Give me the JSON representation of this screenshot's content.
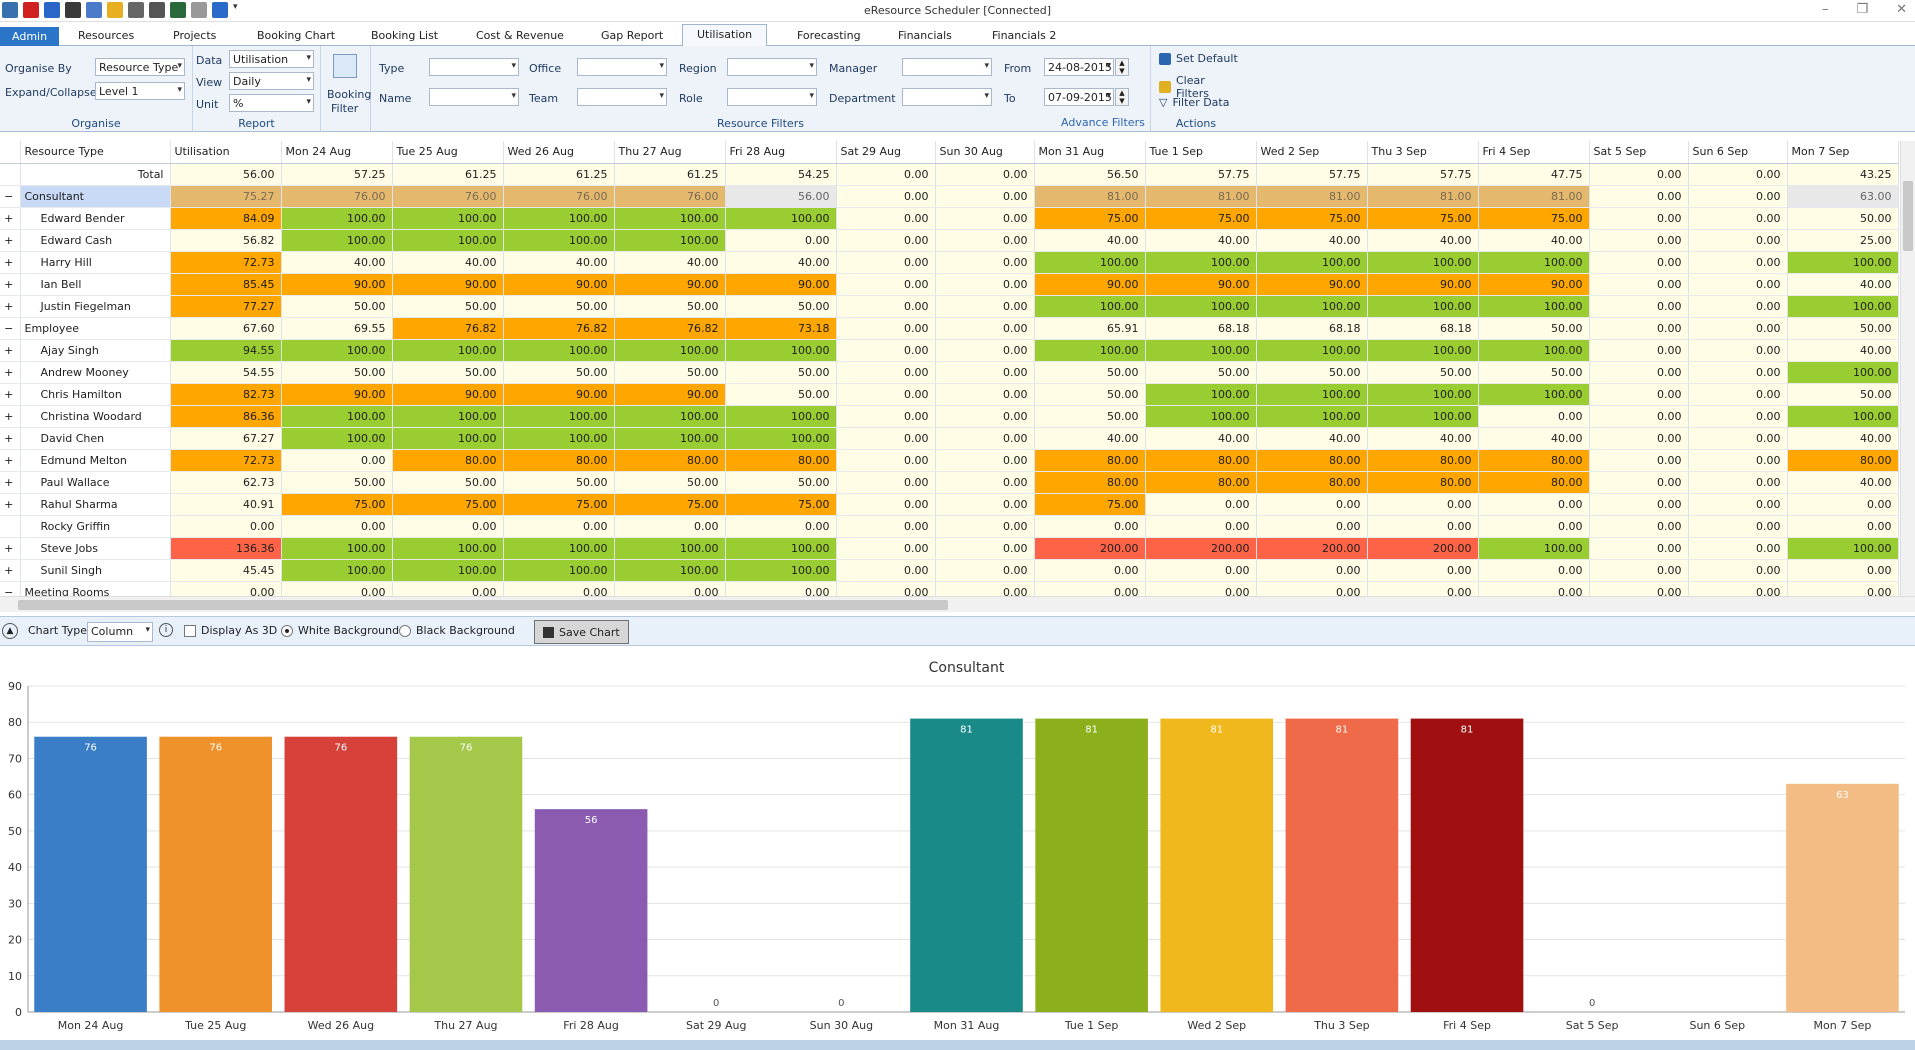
{
  "window": {
    "title": "eResource Scheduler [Connected]"
  },
  "tabs": [
    {
      "label": "Admin"
    },
    {
      "label": "Resources"
    },
    {
      "label": "Projects"
    },
    {
      "label": "Booking Chart"
    },
    {
      "label": "Booking List"
    },
    {
      "label": "Cost & Revenue"
    },
    {
      "label": "Gap Report"
    },
    {
      "label": "Utilisation"
    },
    {
      "label": "Forecasting"
    },
    {
      "label": "Financials"
    },
    {
      "label": "Financials 2"
    }
  ],
  "ribbon": {
    "organise": {
      "label": "Organise",
      "organise_by_label": "Organise By",
      "organise_by_value": "Resource Type",
      "expand_label": "Expand/Collapse",
      "expand_value": "Level 1"
    },
    "report": {
      "label": "Report",
      "data_label": "Data",
      "data_value": "Utilisation",
      "view_label": "View",
      "view_value": "Daily",
      "unit_label": "Unit",
      "unit_value": "%"
    },
    "booking_filter": {
      "label": "Booking",
      "label2": "Filter"
    },
    "resource_filters": {
      "label": "Resource Filters",
      "type": "Type",
      "name": "Name",
      "office": "Office",
      "team": "Team",
      "region": "Region",
      "role": "Role",
      "manager": "Manager",
      "department": "Department",
      "from": "From",
      "from_value": "24-08-2015",
      "to": "To",
      "to_value": "07-09-2015",
      "advance": "Advance Filters"
    },
    "actions": {
      "label": "Actions",
      "set_default": "Set Default",
      "clear_filters": "Clear Filters",
      "filter_data": "Filter Data"
    }
  },
  "grid": {
    "headers": [
      "Resource Type",
      "Utilisation",
      "Mon 24 Aug",
      "Tue 25 Aug",
      "Wed 26 Aug",
      "Thu 27 Aug",
      "Fri 28 Aug",
      "Sat 29 Aug",
      "Sun 30 Aug",
      "Mon 31 Aug",
      "Tue 1 Sep",
      "Wed 2 Sep",
      "Thu 3 Sep",
      "Fri 4 Sep",
      "Sat 5 Sep",
      "Sun 6 Sep",
      "Mon 7 Sep"
    ],
    "rows": [
      {
        "kind": "total",
        "name": "Total",
        "values": [
          "56.00",
          "57.25",
          "61.25",
          "61.25",
          "61.25",
          "54.25",
          "0.00",
          "0.00",
          "56.50",
          "57.75",
          "57.75",
          "57.75",
          "47.75",
          "0.00",
          "0.00",
          "43.25"
        ]
      },
      {
        "kind": "group",
        "sel": true,
        "exp": "−",
        "name": "Consultant",
        "values": [
          "75.27",
          "76.00",
          "76.00",
          "76.00",
          "76.00",
          "56.00",
          "0.00",
          "0.00",
          "81.00",
          "81.00",
          "81.00",
          "81.00",
          "81.00",
          "0.00",
          "0.00",
          "63.00"
        ],
        "colors": "TTTTTGYYTTTTTYYG"
      },
      {
        "kind": "item",
        "exp": "+",
        "name": "Edward Bender",
        "values": [
          "84.09",
          "100.00",
          "100.00",
          "100.00",
          "100.00",
          "100.00",
          "0.00",
          "0.00",
          "75.00",
          "75.00",
          "75.00",
          "75.00",
          "75.00",
          "0.00",
          "0.00",
          "50.00"
        ],
        "colors": "OGGGGGYYOOOOOYYY"
      },
      {
        "kind": "item",
        "exp": "+",
        "name": "Edward Cash",
        "values": [
          "56.82",
          "100.00",
          "100.00",
          "100.00",
          "100.00",
          "0.00",
          "0.00",
          "0.00",
          "40.00",
          "40.00",
          "40.00",
          "40.00",
          "40.00",
          "0.00",
          "0.00",
          "25.00"
        ],
        "colors": "YGGGGYYYYYYYYYYY"
      },
      {
        "kind": "item",
        "exp": "+",
        "name": "Harry Hill",
        "values": [
          "72.73",
          "40.00",
          "40.00",
          "40.00",
          "40.00",
          "40.00",
          "0.00",
          "0.00",
          "100.00",
          "100.00",
          "100.00",
          "100.00",
          "100.00",
          "0.00",
          "0.00",
          "100.00"
        ],
        "colors": "OYYYYYYYGGGGGYYG"
      },
      {
        "kind": "item",
        "exp": "+",
        "name": "Ian Bell",
        "values": [
          "85.45",
          "90.00",
          "90.00",
          "90.00",
          "90.00",
          "90.00",
          "0.00",
          "0.00",
          "90.00",
          "90.00",
          "90.00",
          "90.00",
          "90.00",
          "0.00",
          "0.00",
          "40.00"
        ],
        "colors": "OOOOOOYYOOOOOYYY"
      },
      {
        "kind": "item",
        "exp": "+",
        "name": "Justin Fiegelman",
        "values": [
          "77.27",
          "50.00",
          "50.00",
          "50.00",
          "50.00",
          "50.00",
          "0.00",
          "0.00",
          "100.00",
          "100.00",
          "100.00",
          "100.00",
          "100.00",
          "0.00",
          "0.00",
          "100.00"
        ],
        "colors": "OYYYYYYYGGGGGYYG"
      },
      {
        "kind": "group",
        "exp": "−",
        "name": "Employee",
        "values": [
          "67.60",
          "69.55",
          "76.82",
          "76.82",
          "76.82",
          "73.18",
          "0.00",
          "0.00",
          "65.91",
          "68.18",
          "68.18",
          "68.18",
          "50.00",
          "0.00",
          "0.00",
          "50.00"
        ],
        "colors": "YYOOOOYYYYYYYYYY"
      },
      {
        "kind": "item",
        "exp": "+",
        "name": "Ajay Singh",
        "values": [
          "94.55",
          "100.00",
          "100.00",
          "100.00",
          "100.00",
          "100.00",
          "0.00",
          "0.00",
          "100.00",
          "100.00",
          "100.00",
          "100.00",
          "100.00",
          "0.00",
          "0.00",
          "40.00"
        ],
        "colors": "GGGGGGYYGGGGGYYY"
      },
      {
        "kind": "item",
        "exp": "+",
        "name": "Andrew Mooney",
        "values": [
          "54.55",
          "50.00",
          "50.00",
          "50.00",
          "50.00",
          "50.00",
          "0.00",
          "0.00",
          "50.00",
          "50.00",
          "50.00",
          "50.00",
          "50.00",
          "0.00",
          "0.00",
          "100.00"
        ],
        "colors": "YYYYYYYYYYYYYYYG"
      },
      {
        "kind": "item",
        "exp": "+",
        "name": "Chris Hamilton",
        "values": [
          "82.73",
          "90.00",
          "90.00",
          "90.00",
          "90.00",
          "50.00",
          "0.00",
          "0.00",
          "50.00",
          "100.00",
          "100.00",
          "100.00",
          "100.00",
          "0.00",
          "0.00",
          "50.00"
        ],
        "colors": "OOOOOYYYYGGGGYYY"
      },
      {
        "kind": "item",
        "exp": "+",
        "name": "Christina Woodard",
        "values": [
          "86.36",
          "100.00",
          "100.00",
          "100.00",
          "100.00",
          "100.00",
          "0.00",
          "0.00",
          "50.00",
          "100.00",
          "100.00",
          "100.00",
          "0.00",
          "0.00",
          "0.00",
          "100.00"
        ],
        "colors": "OGGGGGYYYGGGYYYG"
      },
      {
        "kind": "item",
        "exp": "+",
        "name": "David Chen",
        "values": [
          "67.27",
          "100.00",
          "100.00",
          "100.00",
          "100.00",
          "100.00",
          "0.00",
          "0.00",
          "40.00",
          "40.00",
          "40.00",
          "40.00",
          "40.00",
          "0.00",
          "0.00",
          "40.00"
        ],
        "colors": "YGGGGGYYYYYYYYYY"
      },
      {
        "kind": "item",
        "exp": "+",
        "name": "Edmund Melton",
        "values": [
          "72.73",
          "0.00",
          "80.00",
          "80.00",
          "80.00",
          "80.00",
          "0.00",
          "0.00",
          "80.00",
          "80.00",
          "80.00",
          "80.00",
          "80.00",
          "0.00",
          "0.00",
          "80.00"
        ],
        "colors": "OYOOOOYYOOOOOYYO"
      },
      {
        "kind": "item",
        "exp": "+",
        "name": "Paul Wallace",
        "values": [
          "62.73",
          "50.00",
          "50.00",
          "50.00",
          "50.00",
          "50.00",
          "0.00",
          "0.00",
          "80.00",
          "80.00",
          "80.00",
          "80.00",
          "80.00",
          "0.00",
          "0.00",
          "40.00"
        ],
        "colors": "YYYYYYYYOOOOOYYY"
      },
      {
        "kind": "item",
        "exp": "+",
        "name": "Rahul Sharma",
        "values": [
          "40.91",
          "75.00",
          "75.00",
          "75.00",
          "75.00",
          "75.00",
          "0.00",
          "0.00",
          "75.00",
          "0.00",
          "0.00",
          "0.00",
          "0.00",
          "0.00",
          "0.00",
          "0.00"
        ],
        "colors": "YOOOOOYYOYYYYYYY"
      },
      {
        "kind": "item",
        "exp": "",
        "name": "Rocky Griffin",
        "values": [
          "0.00",
          "0.00",
          "0.00",
          "0.00",
          "0.00",
          "0.00",
          "0.00",
          "0.00",
          "0.00",
          "0.00",
          "0.00",
          "0.00",
          "0.00",
          "0.00",
          "0.00",
          "0.00"
        ],
        "colors": "YYYYYYYYYYYYYYYY"
      },
      {
        "kind": "item",
        "exp": "+",
        "name": "Steve Jobs",
        "values": [
          "136.36",
          "100.00",
          "100.00",
          "100.00",
          "100.00",
          "100.00",
          "0.00",
          "0.00",
          "200.00",
          "200.00",
          "200.00",
          "200.00",
          "100.00",
          "0.00",
          "0.00",
          "100.00"
        ],
        "colors": "RGGGGGYYRRRRGYYG"
      },
      {
        "kind": "item",
        "exp": "+",
        "name": "Sunil Singh",
        "values": [
          "45.45",
          "100.00",
          "100.00",
          "100.00",
          "100.00",
          "100.00",
          "0.00",
          "0.00",
          "0.00",
          "0.00",
          "0.00",
          "0.00",
          "0.00",
          "0.00",
          "0.00",
          "0.00"
        ],
        "colors": "YGGGGGYYYYYYYYYY"
      },
      {
        "kind": "group",
        "exp": "−",
        "name": "Meeting Rooms",
        "values": [
          "0.00",
          "0.00",
          "0.00",
          "0.00",
          "0.00",
          "0.00",
          "0.00",
          "0.00",
          "0.00",
          "0.00",
          "0.00",
          "0.00",
          "0.00",
          "0.00",
          "0.00",
          "0.00"
        ],
        "colors": "YYYYYYYYYYYYYYYY"
      }
    ]
  },
  "chart_toolbar": {
    "chart_type_label": "Chart Type:",
    "chart_type_value": "Column",
    "display_3d": "Display As 3D",
    "white_bg": "White Background",
    "black_bg": "Black Background",
    "save_chart": "Save Chart"
  },
  "chart_data": {
    "type": "bar",
    "title": "Consultant",
    "categories": [
      "Mon 24 Aug",
      "Tue 25 Aug",
      "Wed 26 Aug",
      "Thu 27 Aug",
      "Fri 28 Aug",
      "Sat 29 Aug",
      "Sun 30 Aug",
      "Mon 31 Aug",
      "Tue 1 Sep",
      "Wed 2 Sep",
      "Thu 3 Sep",
      "Fri 4 Sep",
      "Sat 5 Sep",
      "Sun 6 Sep",
      "Mon 7 Sep"
    ],
    "values": [
      76,
      76,
      76,
      76,
      56,
      0,
      0,
      81,
      81,
      81,
      81,
      81,
      0,
      0,
      63
    ],
    "labels": [
      "76",
      "76",
      "76",
      "76",
      "56",
      "0",
      "0",
      "81",
      "81",
      "81",
      "81",
      "81",
      "0",
      "",
      "63"
    ],
    "colors": [
      "#3a7ec8",
      "#f0922c",
      "#d6423a",
      "#a5c84a",
      "#8a5bb0",
      "#888888",
      "#888888",
      "#1a8a88",
      "#8cb01c",
      "#f0b81c",
      "#ee6a48",
      "#a01010",
      "#888888",
      "#888888",
      "#f2bc84"
    ],
    "yticks": [
      0,
      10,
      20,
      30,
      40,
      50,
      60,
      70,
      80,
      90
    ],
    "ylim": [
      0,
      90
    ],
    "grid": true,
    "legend": false
  },
  "colors": {
    "orange": "#ffa600",
    "green": "#9acd32",
    "red": "#ff6347",
    "yellow": "#fffde6",
    "tan": "#e4b96e",
    "grey": "#e8e8e8",
    "accent": "#2b75c8"
  }
}
